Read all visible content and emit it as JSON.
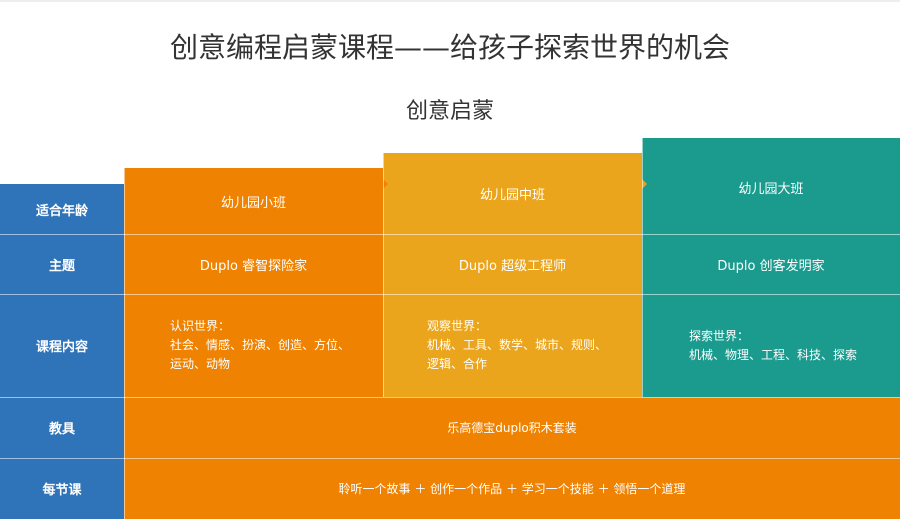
{
  "title": "创意编程启蒙课程——给孩子探索世界的机会",
  "subtitle": "创意启蒙",
  "row_headers": {
    "age": "适合年龄",
    "theme": "主题",
    "content": "课程内容",
    "tools": "教具",
    "lesson": "每节课"
  },
  "columns": [
    {
      "age": "幼儿园小班",
      "theme": "Duplo 睿智探险家",
      "content_title": "认识世界：",
      "content_line1": "社会、情感、扮演、创造、方位、",
      "content_line2": "运动、动物",
      "color": "#ef8200"
    },
    {
      "age": "幼儿园中班",
      "theme": "Duplo 超级工程师",
      "content_title": "观察世界：",
      "content_line1": "机械、工具、数学、城市、规则、",
      "content_line2": "逻辑、合作",
      "color": "#eaa51c"
    },
    {
      "age": "幼儿园大班",
      "theme": "Duplo 创客发明家",
      "content_title": "探索世界：",
      "content_line1": "机械、物理、工程、科技、探索",
      "color": "#1b9b8e"
    }
  ],
  "tools_value": "乐高德宝duplo积木套装",
  "lesson_value": "聆听一个故事 ＋ 创作一个作品 ＋ 学习一个技能 ＋ 领悟一个道理",
  "colors": {
    "header": "#2f73b9",
    "orange": "#ef8200",
    "yellow": "#eaa51c",
    "teal": "#1b9b8e"
  }
}
